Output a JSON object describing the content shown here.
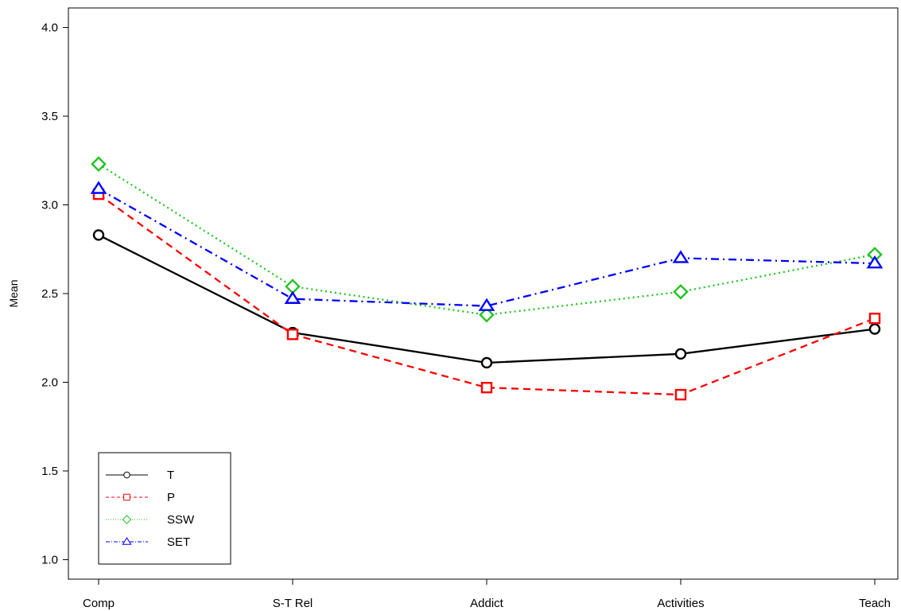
{
  "chart_data": {
    "type": "line",
    "title": "",
    "xlabel": "",
    "ylabel": "Mean",
    "categories": [
      "Comp",
      "S-T Rel",
      "Addict",
      "Activities",
      "Teach"
    ],
    "y_ticks": [
      "1.0",
      "1.5",
      "2.0",
      "2.5",
      "3.0",
      "3.5",
      "4.0"
    ],
    "ylim": [
      0.89,
      4.11
    ],
    "grid": false,
    "legend_position": "bottom-left",
    "series": [
      {
        "name": "T",
        "values": [
          2.83,
          2.28,
          2.11,
          2.16,
          2.3
        ],
        "color": "#000000",
        "marker": "circle",
        "dash": "solid"
      },
      {
        "name": "P",
        "values": [
          3.06,
          2.27,
          1.97,
          1.93,
          2.36
        ],
        "color": "#ff0000",
        "marker": "square",
        "dash": "dashed"
      },
      {
        "name": "SSW",
        "values": [
          3.23,
          2.54,
          2.38,
          2.51,
          2.72
        ],
        "color": "#22c422",
        "marker": "diamond",
        "dash": "dotted"
      },
      {
        "name": "SET",
        "values": [
          3.09,
          2.47,
          2.43,
          2.7,
          2.67
        ],
        "color": "#0000ff",
        "marker": "triangle",
        "dash": "dashdot"
      }
    ]
  }
}
